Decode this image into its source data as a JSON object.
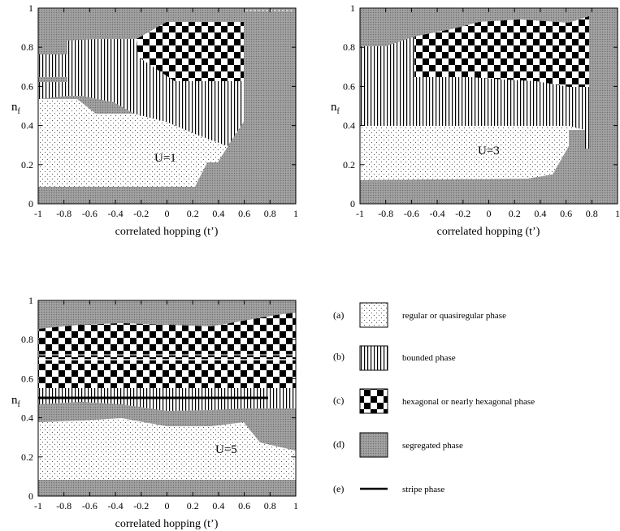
{
  "colors": {
    "segregated": "#8c8c8c",
    "axis": "#000000",
    "background": "#ffffff"
  },
  "panels": [
    {
      "id": "u1",
      "label": "U=1",
      "xlabel": "correlated hopping (t’)",
      "ylabel_main": "n",
      "ylabel_sub": "f",
      "xticks": [
        "-1",
        "-0.8",
        "-0.6",
        "-0.4",
        "-0.2",
        "0",
        "0.2",
        "0.4",
        "0.6",
        "0.8",
        "1"
      ],
      "yticks": [
        "0",
        "0.2",
        "0.4",
        "0.6",
        "0.8",
        "1"
      ]
    },
    {
      "id": "u3",
      "label": "U=3",
      "xlabel": "correlated hopping (t’)",
      "ylabel_main": "n",
      "ylabel_sub": "f",
      "xticks": [
        "-1",
        "-0.8",
        "-0.6",
        "-0.4",
        "-0.2",
        "0",
        "0.2",
        "0.4",
        "0.6",
        "0.8",
        "1"
      ],
      "yticks": [
        "0",
        "0.2",
        "0.4",
        "0.6",
        "0.8",
        "1"
      ]
    },
    {
      "id": "u5",
      "label": "U=5",
      "xlabel": "correlated hopping (t’)",
      "ylabel_main": "n",
      "ylabel_sub": "f",
      "xticks": [
        "-1",
        "-0.8",
        "-0.6",
        "-0.4",
        "-0.2",
        "0",
        "0.2",
        "0.4",
        "0.6",
        "0.8",
        "1"
      ],
      "yticks": [
        "0",
        "0.2",
        "0.4",
        "0.6",
        "0.8",
        "1"
      ]
    }
  ],
  "legend": [
    {
      "tag": "(a)",
      "text": "regular or quasiregular phase",
      "pattern": "dots-icon"
    },
    {
      "tag": "(b)",
      "text": "bounded phase",
      "pattern": "vertical-lines-icon"
    },
    {
      "tag": "(c)",
      "text": "hexagonal or nearly hexagonal phase",
      "pattern": "checker-icon"
    },
    {
      "tag": "(d)",
      "text": "segregated phase",
      "pattern": "gray-fill-icon"
    },
    {
      "tag": "(e)",
      "text": "stripe phase",
      "pattern": "line-icon"
    }
  ]
}
